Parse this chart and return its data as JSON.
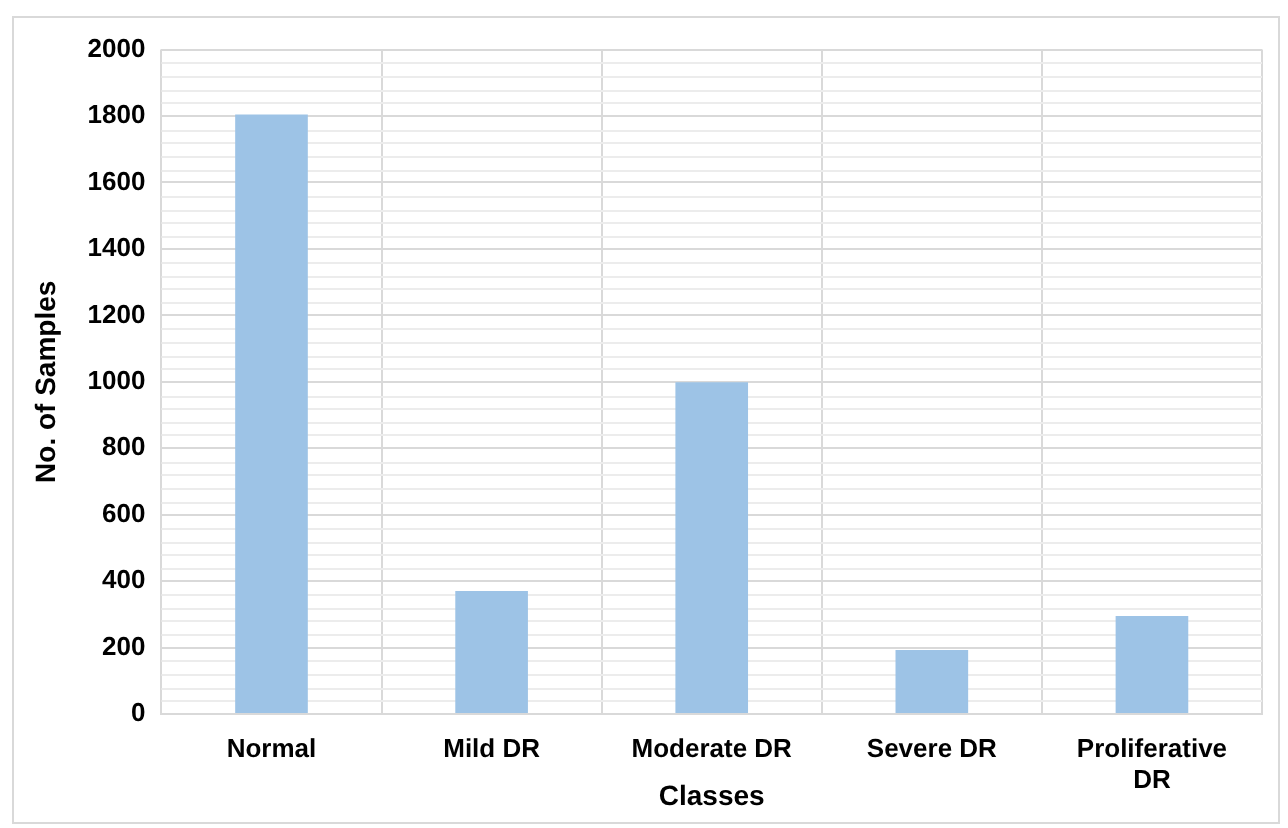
{
  "chart_data": {
    "type": "bar",
    "xlabel": "Classes",
    "ylabel": "No. of Samples",
    "categories": [
      "Normal",
      "Mild DR",
      "Moderate DR",
      "Severe DR",
      "Proliferative DR"
    ],
    "values": [
      1805,
      370,
      999,
      193,
      295
    ],
    "color": "#9dc3e6",
    "ylim": [
      0,
      2000
    ],
    "yticks": [
      0,
      200,
      400,
      600,
      800,
      1000,
      1200,
      1400,
      1600,
      1800,
      2000
    ],
    "grid": true,
    "legend": false
  }
}
